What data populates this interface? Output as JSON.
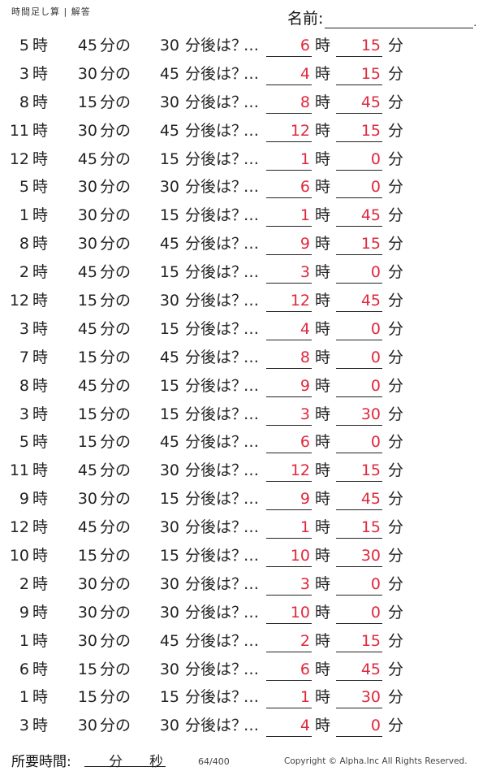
{
  "header": {
    "title": "時間足し算 | 解答",
    "name_label": "名前:",
    "name_dot": "."
  },
  "labels": {
    "hour_unit": "時",
    "minute_of": "分の",
    "after_q": "分後は？",
    "dots": "…",
    "minute_unit": "分"
  },
  "problems": [
    {
      "h": "5",
      "m": "45",
      "add": "30",
      "ah": "6",
      "am": "15"
    },
    {
      "h": "3",
      "m": "30",
      "add": "45",
      "ah": "4",
      "am": "15"
    },
    {
      "h": "8",
      "m": "15",
      "add": "30",
      "ah": "8",
      "am": "45"
    },
    {
      "h": "11",
      "m": "30",
      "add": "45",
      "ah": "12",
      "am": "15"
    },
    {
      "h": "12",
      "m": "45",
      "add": "15",
      "ah": "1",
      "am": "0"
    },
    {
      "h": "5",
      "m": "30",
      "add": "30",
      "ah": "6",
      "am": "0"
    },
    {
      "h": "1",
      "m": "30",
      "add": "15",
      "ah": "1",
      "am": "45"
    },
    {
      "h": "8",
      "m": "30",
      "add": "45",
      "ah": "9",
      "am": "15"
    },
    {
      "h": "2",
      "m": "45",
      "add": "15",
      "ah": "3",
      "am": "0"
    },
    {
      "h": "12",
      "m": "15",
      "add": "30",
      "ah": "12",
      "am": "45"
    },
    {
      "h": "3",
      "m": "45",
      "add": "15",
      "ah": "4",
      "am": "0"
    },
    {
      "h": "7",
      "m": "15",
      "add": "45",
      "ah": "8",
      "am": "0"
    },
    {
      "h": "8",
      "m": "45",
      "add": "15",
      "ah": "9",
      "am": "0"
    },
    {
      "h": "3",
      "m": "15",
      "add": "15",
      "ah": "3",
      "am": "30"
    },
    {
      "h": "5",
      "m": "15",
      "add": "45",
      "ah": "6",
      "am": "0"
    },
    {
      "h": "11",
      "m": "45",
      "add": "30",
      "ah": "12",
      "am": "15"
    },
    {
      "h": "9",
      "m": "30",
      "add": "15",
      "ah": "9",
      "am": "45"
    },
    {
      "h": "12",
      "m": "45",
      "add": "30",
      "ah": "1",
      "am": "15"
    },
    {
      "h": "10",
      "m": "15",
      "add": "15",
      "ah": "10",
      "am": "30"
    },
    {
      "h": "2",
      "m": "30",
      "add": "30",
      "ah": "3",
      "am": "0"
    },
    {
      "h": "9",
      "m": "30",
      "add": "30",
      "ah": "10",
      "am": "0"
    },
    {
      "h": "1",
      "m": "30",
      "add": "45",
      "ah": "2",
      "am": "15"
    },
    {
      "h": "6",
      "m": "15",
      "add": "30",
      "ah": "6",
      "am": "45"
    },
    {
      "h": "1",
      "m": "15",
      "add": "15",
      "ah": "1",
      "am": "30"
    },
    {
      "h": "3",
      "m": "30",
      "add": "30",
      "ah": "4",
      "am": "0"
    }
  ],
  "footer": {
    "time_label": "所要時間:",
    "time_min_unit": "分",
    "time_sec_unit": "秒",
    "page_number": "64/400",
    "copyright": "Copyright ©  Alpha.Inc All Rights Reserved."
  },
  "colors": {
    "answer": "#e0283c",
    "text": "#222222"
  }
}
